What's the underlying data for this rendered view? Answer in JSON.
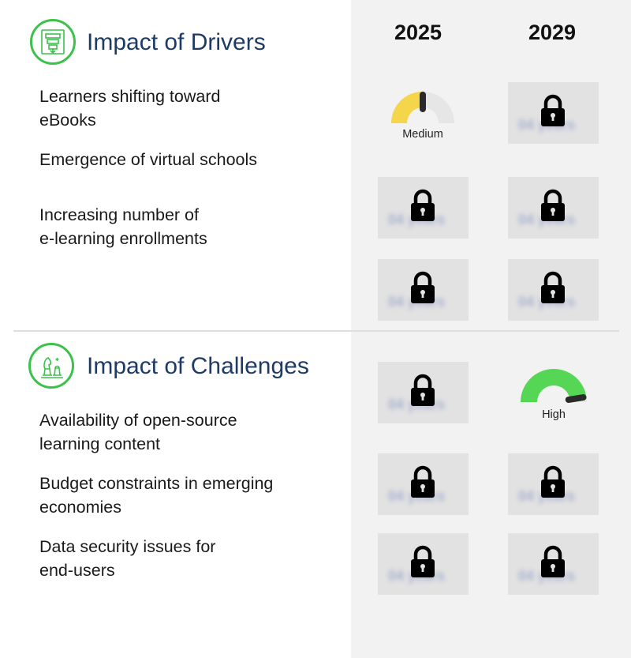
{
  "columns": [
    "2025",
    "2029"
  ],
  "drivers": {
    "title": "Impact of Drivers",
    "icon": "funnel-chart-icon",
    "items": [
      "Learners shifting toward\neBooks",
      "Emergence of virtual schools",
      "Increasing number of\ne-learning enrollments"
    ]
  },
  "challenges": {
    "title": "Impact of Challenges",
    "icon": "chess-pieces-icon",
    "items": [
      "Availability of open-source\nlearning content",
      "Budget constraints in emerging\neconomies",
      "Data security issues for\nend-users"
    ]
  },
  "gauges": {
    "drivers_2025_first": {
      "label": "Medium",
      "level": 0.5,
      "color": "#f5d54a"
    },
    "challenges_2029_first": {
      "label": "High",
      "level": 0.95,
      "color": "#55d655"
    }
  },
  "locked_placeholder": "04 years",
  "colors": {
    "accent_green": "#3cc24b",
    "title_blue": "#1e3b66",
    "panel_bg": "#f2f2f2",
    "locked_bg": "#e2e2e2"
  }
}
